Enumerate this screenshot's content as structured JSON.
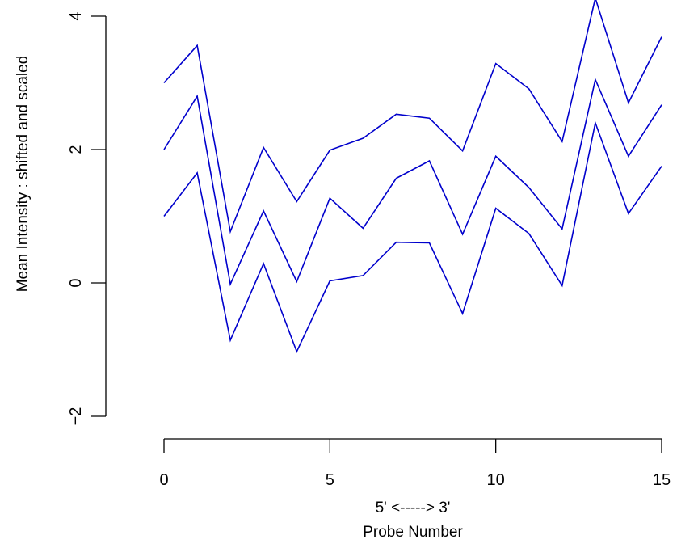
{
  "chart_data": {
    "type": "line",
    "title": "",
    "xlabel_line1": "5' <-----> 3'",
    "xlabel_line2": "Probe Number",
    "ylabel": "Mean Intensity : shifted and scaled",
    "xlim": [
      0,
      15
    ],
    "ylim": [
      -2,
      4.2
    ],
    "x_ticks": [
      0,
      5,
      10,
      15
    ],
    "y_ticks": [
      -2,
      0,
      2,
      4
    ],
    "x_tick_labels": [
      "0",
      "5",
      "10",
      "15"
    ],
    "y_tick_labels": [
      "−2",
      "0",
      "2",
      "4"
    ],
    "grid": false,
    "line_color": "#0000cc",
    "x": [
      0,
      1,
      2,
      3,
      4,
      5,
      6,
      7,
      8,
      9,
      10,
      11,
      12,
      13,
      14,
      15
    ],
    "series": [
      {
        "values": [
          3.0,
          3.56,
          0.77,
          2.03,
          1.22,
          1.99,
          2.17,
          2.53,
          2.47,
          1.98,
          3.29,
          2.91,
          2.12,
          4.27,
          2.7,
          3.69
        ]
      },
      {
        "values": [
          2.0,
          2.8,
          -0.02,
          1.08,
          0.02,
          1.27,
          0.82,
          1.57,
          1.83,
          0.73,
          1.9,
          1.43,
          0.81,
          3.05,
          1.9,
          2.67
        ]
      },
      {
        "values": [
          1.0,
          1.65,
          -0.86,
          0.29,
          -1.03,
          0.03,
          0.11,
          0.61,
          0.6,
          -0.46,
          1.12,
          0.74,
          -0.04,
          2.4,
          1.04,
          1.75
        ]
      }
    ]
  }
}
